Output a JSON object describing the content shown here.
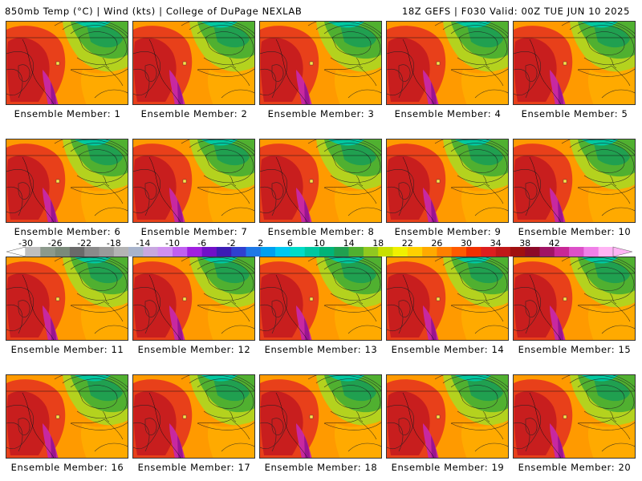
{
  "header": {
    "left": "850mb Temp (°C) | Wind (kts) | College of DuPage NEXLAB",
    "right": "18Z GEFS | F030 Valid: 00Z TUE JUN 10 2025"
  },
  "colorbar": {
    "labels": [
      "-30",
      "-26",
      "-22",
      "-18",
      "-14",
      "-10",
      "-6",
      "-2",
      "2",
      "6",
      "10",
      "14",
      "18",
      "22",
      "26",
      "30",
      "34",
      "38",
      "42"
    ],
    "colors": [
      "#bfbfbf",
      "#8c9a8c",
      "#7a8a7a",
      "#6a6a6a",
      "#8a8a8a",
      "#9a9a9a",
      "#b4b4b4",
      "#a8b4cc",
      "#c8a8e0",
      "#d090f0",
      "#c060f0",
      "#a020e0",
      "#7010c8",
      "#3c1cb4",
      "#3040d0",
      "#1e78e6",
      "#00a0f0",
      "#00c8f0",
      "#00dcc8",
      "#00c8a0",
      "#00b478",
      "#20a050",
      "#50b030",
      "#90c820",
      "#c8e000",
      "#f0f000",
      "#ffd000",
      "#ffaa00",
      "#ff8000",
      "#ff5a00",
      "#f03000",
      "#dc1e1e",
      "#c01818",
      "#a01010",
      "#8c0a28",
      "#a01464",
      "#c82896",
      "#dc50c8",
      "#f080e8",
      "#ffb4f4"
    ]
  },
  "panels": [
    {
      "caption": "Ensemble Member: 1"
    },
    {
      "caption": "Ensemble Member: 2"
    },
    {
      "caption": "Ensemble Member: 3"
    },
    {
      "caption": "Ensemble Member: 4"
    },
    {
      "caption": "Ensemble Member: 5"
    },
    {
      "caption": "Ensemble Member: 6"
    },
    {
      "caption": "Ensemble Member: 7"
    },
    {
      "caption": "Ensemble Member: 8"
    },
    {
      "caption": "Ensemble Member: 9"
    },
    {
      "caption": "Ensemble Member: 10"
    },
    {
      "caption": "Ensemble Member: 11"
    },
    {
      "caption": "Ensemble Member: 12"
    },
    {
      "caption": "Ensemble Member: 13"
    },
    {
      "caption": "Ensemble Member: 14"
    },
    {
      "caption": "Ensemble Member: 15"
    },
    {
      "caption": "Ensemble Member: 16"
    },
    {
      "caption": "Ensemble Member: 17"
    },
    {
      "caption": "Ensemble Member: 18"
    },
    {
      "caption": "Ensemble Member: 19"
    },
    {
      "caption": "Ensemble Member: 20"
    }
  ]
}
